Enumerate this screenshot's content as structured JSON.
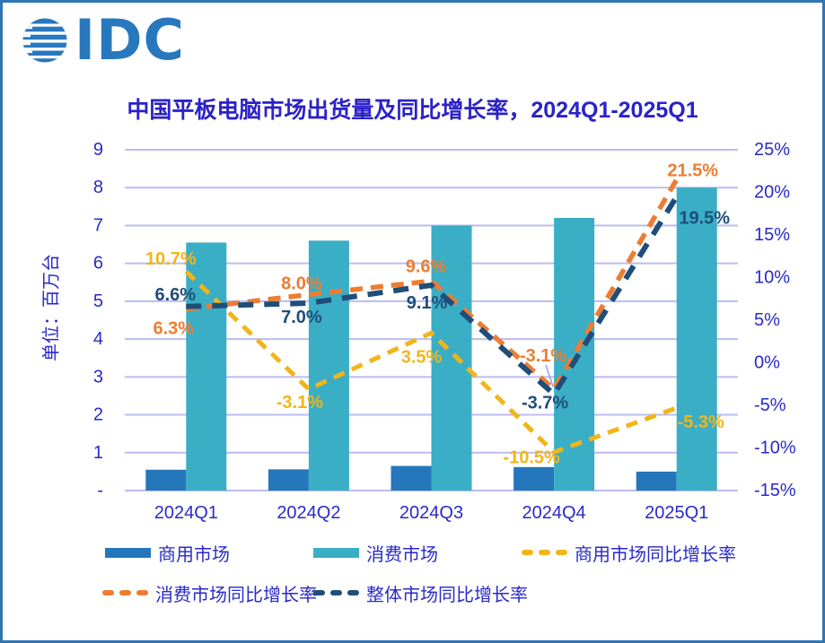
{
  "logo": {
    "text": "IDC"
  },
  "title": "中国平板电脑市场出货量及同比增长率，2024Q1-2025Q1",
  "y_axis": {
    "title": "单位：百万台",
    "ticks": [
      "9",
      "8",
      "7",
      "6",
      "5",
      "4",
      "3",
      "2",
      "1",
      "-"
    ]
  },
  "y2_axis": {
    "ticks": [
      "25%",
      "20%",
      "15%",
      "10%",
      "5%",
      "0%",
      "-5%",
      "-10%",
      "-15%"
    ]
  },
  "chart_data": {
    "type": "combo-bar-line",
    "title": "中国平板电脑市场出货量及同比增长率，2024Q1-2025Q1",
    "ylabel": "单位：百万台",
    "categories": [
      "2024Q1",
      "2024Q2",
      "2024Q3",
      "2024Q4",
      "2025Q1"
    ],
    "bar_series": [
      {
        "name": "商用市场",
        "color": "#2577BC",
        "axis": "left",
        "values": [
          0.55,
          0.56,
          0.65,
          0.62,
          0.5
        ]
      },
      {
        "name": "消费市场",
        "color": "#3AAEC5",
        "axis": "left",
        "values": [
          6.55,
          6.6,
          7.0,
          7.2,
          8.0
        ]
      }
    ],
    "line_series": [
      {
        "name": "商用市场同比增长率",
        "color": "#F2B519",
        "axis": "right",
        "values": [
          10.7,
          -3.1,
          3.5,
          -10.5,
          -5.3
        ],
        "labels": [
          "10.7%",
          "-3.1%",
          "3.5%",
          "-10.5%",
          "-5.3%"
        ]
      },
      {
        "name": "消费市场同比增长率",
        "color": "#ED7D31",
        "axis": "right",
        "values": [
          6.3,
          8.0,
          9.6,
          -3.1,
          21.5
        ],
        "labels": [
          "6.3%",
          "8.0%",
          "9.6%",
          "-3.1%",
          "21.5%"
        ]
      },
      {
        "name": "整体市场同比增长率",
        "color": "#1F4E79",
        "axis": "right",
        "values": [
          6.6,
          7.0,
          9.1,
          -3.7,
          19.5
        ],
        "labels": [
          "6.6%",
          "7.0%",
          "9.1%",
          "-3.7%",
          "19.5%"
        ]
      }
    ],
    "y1_range": [
      0,
      9
    ],
    "y2_range": [
      -15,
      25
    ],
    "grid": true,
    "legend_position": "bottom"
  },
  "colors": {
    "frame_border": "#2E75B6",
    "logo_blue": "#2878BE",
    "title_text": "#2B22C8",
    "axis_text": "#2A2AC8",
    "gridline": "#BCBCF2",
    "leader_line": "#9A9AE8"
  }
}
